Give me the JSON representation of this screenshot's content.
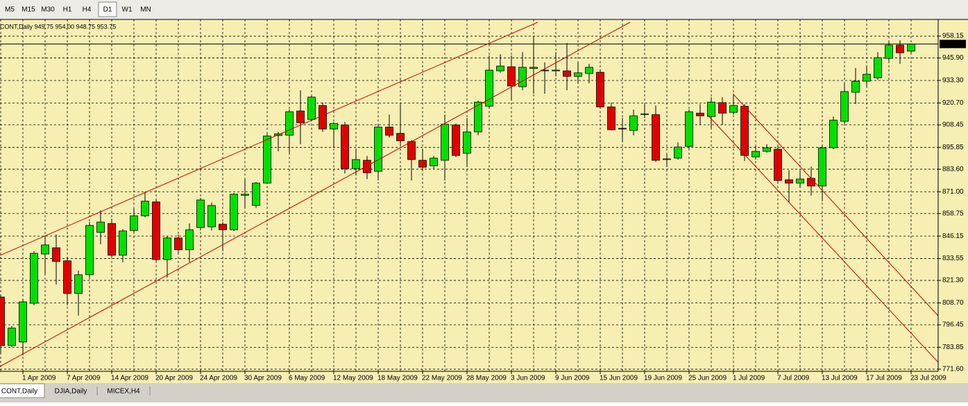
{
  "toolbar": [
    "M5",
    "M15",
    "M30",
    "H1",
    "H4",
    "D1",
    "W1",
    "MN"
  ],
  "tabs": [
    "CONT,Daily",
    "DJIA,Daily",
    "MICEX,H4"
  ],
  "chart_data": {
    "type": "candlestick",
    "info_line": "CONT,Daily  949.75 954.00 948.75 953.75",
    "categories": [
      null,
      null,
      "1 Apr 2009",
      null,
      null,
      null,
      "7 Apr 2009",
      null,
      null,
      null,
      "14 Apr 2009",
      null,
      null,
      null,
      "20 Apr 2009",
      null,
      null,
      null,
      "24 Apr 2009",
      null,
      null,
      null,
      "30 Apr 2009",
      null,
      null,
      null,
      "6 May 2009",
      null,
      null,
      null,
      "12 May 2009",
      null,
      null,
      null,
      "18 May 2009",
      null,
      null,
      null,
      "22 May 2009",
      null,
      null,
      null,
      "28 May 2009",
      null,
      null,
      null,
      "3 Jun 2009",
      null,
      null,
      null,
      "9 Jun 2009",
      null,
      null,
      null,
      "15 Jun 2009",
      null,
      null,
      null,
      "19 Jun 2009",
      null,
      null,
      null,
      "25 Jun 2009",
      null,
      null,
      null,
      "1 Jul 2009",
      null,
      null,
      null,
      "7 Jul 2009",
      null,
      null,
      null,
      "13 Jul 2009",
      null,
      null,
      null,
      "17 Jul 2009",
      null,
      null,
      null,
      "23 Jul 2009"
    ],
    "open": [
      812.0,
      784.8,
      786.8,
      808.5,
      836.1,
      839.6,
      832.3,
      814.0,
      824.5,
      848.2,
      853.2,
      835.4,
      849.3,
      857.5,
      865.3,
      833.0,
      845.1,
      838.5,
      850.9,
      851.3,
      852.8,
      849.7,
      869.0,
      863.3,
      875.8,
      902.5,
      902.6,
      916.2,
      911.5,
      919.3,
      906.1,
      908.4,
      883.9,
      888.6,
      882.4,
      907.2,
      903.7,
      899.1,
      888.6,
      885.5,
      888.6,
      908.4,
      892.5,
      904.5,
      918.9,
      938.7,
      941.0,
      929.8,
      940.0,
      939.1,
      939.1,
      938.7,
      935.6,
      937.2,
      937.9,
      918.5,
      906.5,
      905.3,
      914.2,
      914.2,
      889.0,
      889.8,
      896.4,
      915.0,
      913.1,
      920.9,
      915.4,
      918.9,
      890.5,
      893.6,
      894.8,
      877.7,
      875.8,
      878.5,
      874.2,
      895.6,
      910.4,
      926.7,
      932.9,
      934.8,
      945.7,
      953.1,
      949.75
    ],
    "high": [
      813.2,
      795.7,
      810.5,
      837.7,
      846.2,
      847.0,
      834.6,
      826.8,
      854.0,
      860.6,
      855.9,
      850.1,
      861.8,
      871.1,
      866.4,
      846.2,
      847.0,
      853.2,
      867.6,
      864.9,
      854.0,
      870.3,
      878.1,
      876.5,
      903.4,
      904.5,
      917.0,
      927.8,
      924.7,
      920.9,
      910.0,
      910.0,
      894.8,
      891.0,
      908.4,
      914.2,
      920.9,
      899.9,
      894.8,
      891.0,
      914.2,
      909.2,
      912.3,
      922.0,
      947.3,
      948.0,
      947.3,
      949.2,
      958.2,
      943.4,
      949.2,
      954.3,
      943.4,
      942.6,
      939.5,
      920.9,
      912.3,
      917.0,
      920.1,
      919.3,
      892.1,
      898.7,
      917.0,
      920.1,
      923.9,
      923.9,
      925.9,
      920.1,
      896.8,
      897.5,
      896.8,
      883.1,
      883.1,
      885.1,
      896.8,
      913.1,
      931.7,
      940.3,
      941.4,
      949.2,
      955.0,
      955.8,
      954.0
    ],
    "low": [
      780.2,
      784.1,
      779.4,
      807.4,
      824.9,
      819.0,
      807.4,
      801.6,
      823.0,
      841.6,
      834.6,
      831.5,
      848.2,
      856.7,
      831.9,
      823.0,
      836.5,
      831.5,
      849.3,
      849.3,
      837.7,
      849.0,
      861.8,
      861.8,
      875.4,
      893.6,
      892.9,
      897.5,
      910.4,
      904.5,
      895.6,
      881.2,
      880.4,
      878.1,
      877.3,
      901.4,
      896.8,
      877.3,
      883.1,
      883.9,
      877.3,
      890.5,
      885.1,
      902.6,
      918.1,
      937.6,
      922.0,
      927.8,
      925.9,
      925.9,
      935.6,
      927.8,
      931.7,
      931.7,
      917.7,
      905.3,
      898.7,
      902.6,
      912.3,
      887.8,
      885.1,
      889.0,
      894.8,
      908.4,
      906.5,
      908.4,
      914.2,
      888.2,
      889.0,
      892.9,
      876.5,
      864.9,
      873.4,
      868.8,
      865.7,
      894.8,
      909.2,
      920.1,
      929.8,
      933.7,
      944.2,
      942.6,
      948.75
    ],
    "close": [
      784.8,
      794.6,
      809.3,
      836.5,
      841.2,
      831.9,
      814.0,
      824.5,
      852.1,
      854.0,
      835.4,
      849.0,
      857.5,
      865.7,
      833.0,
      845.1,
      838.5,
      849.7,
      866.4,
      863.3,
      849.7,
      869.6,
      869.6,
      875.8,
      902.2,
      903.4,
      915.8,
      909.6,
      924.0,
      906.1,
      909.2,
      883.9,
      889.0,
      881.6,
      907.2,
      902.6,
      899.5,
      889.0,
      884.7,
      889.8,
      908.8,
      891.3,
      904.5,
      921.2,
      939.1,
      941.4,
      930.2,
      940.7,
      940.7,
      939.1,
      939.1,
      935.6,
      937.6,
      940.7,
      918.5,
      905.7,
      906.1,
      913.5,
      914.6,
      888.6,
      889.4,
      896.0,
      915.8,
      913.5,
      921.2,
      915.0,
      919.3,
      891.3,
      893.6,
      895.6,
      877.3,
      875.8,
      878.1,
      874.2,
      895.6,
      911.1,
      927.1,
      932.9,
      936.8,
      946.1,
      953.1,
      948.8,
      953.75
    ],
    "up_color": "#00e000",
    "down_color": "#e00000",
    "ylim": [
      770.4,
      967.5
    ],
    "yticks": [
      958.15,
      {
        "value": 945.9,
        "label": "945.90"
      },
      {
        "value": 933.3,
        "label": "933.30"
      },
      {
        "value": 920.7,
        "label": "920.70"
      },
      908.45,
      895.85,
      {
        "value": 883.6,
        "label": "883.60"
      },
      {
        "value": 871,
        "label": "871.00"
      },
      858.75,
      846.15,
      833.55,
      {
        "value": 821.3,
        "label": "821.30"
      },
      {
        "value": 808.7,
        "label": "808.70"
      },
      796.45,
      783.85,
      {
        "value": 771.6,
        "label": "771.60"
      }
    ],
    "grid": true
  }
}
